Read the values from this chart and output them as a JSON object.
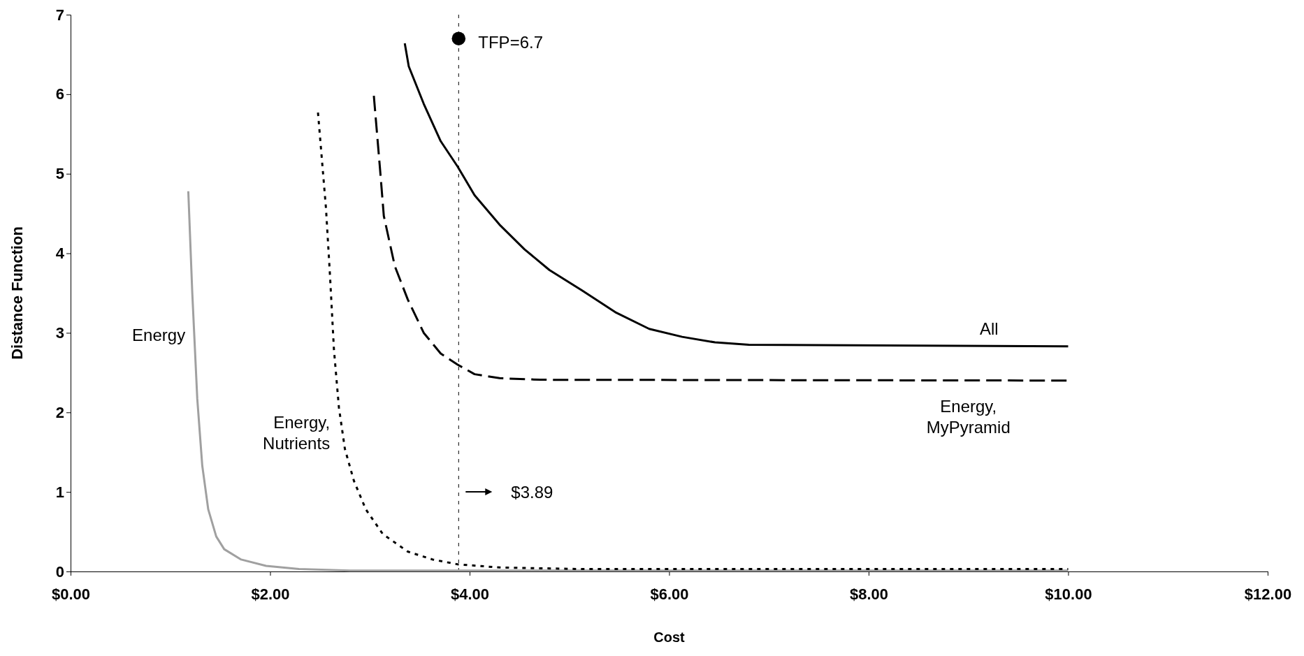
{
  "chart_data": {
    "type": "line",
    "xlabel": "Cost",
    "ylabel": "Distance Function",
    "xlim": [
      0,
      12
    ],
    "ylim": [
      0,
      7
    ],
    "xticks": [
      {
        "value": 0,
        "label": "$0.00"
      },
      {
        "value": 2,
        "label": "$2.00"
      },
      {
        "value": 4,
        "label": "$4.00"
      },
      {
        "value": 6,
        "label": "$6.00"
      },
      {
        "value": 8,
        "label": "$8.00"
      },
      {
        "value": 10,
        "label": "$10.00"
      },
      {
        "value": 12,
        "label": "$12.00"
      }
    ],
    "yticks": [
      0,
      1,
      2,
      3,
      4,
      5,
      6,
      7
    ],
    "grid": false,
    "series": [
      {
        "name": "Energy",
        "color": "#a0a0a0",
        "line_style": "solid",
        "x": [
          1.18,
          1.22,
          1.27,
          1.32,
          1.38,
          1.46,
          1.54,
          1.71,
          1.96,
          2.29,
          2.8,
          10
        ],
        "values": [
          4.78,
          3.5,
          2.17,
          1.33,
          0.78,
          0.44,
          0.28,
          0.15,
          0.07,
          0.03,
          0.01,
          0.01
        ]
      },
      {
        "name": "Energy, Nutrients",
        "color": "#000000",
        "line_style": "dotted",
        "x": [
          2.48,
          2.56,
          2.6,
          2.64,
          2.69,
          2.75,
          2.84,
          2.96,
          3.13,
          3.38,
          3.63,
          3.88,
          4.3,
          5.13,
          10
        ],
        "values": [
          5.77,
          4.57,
          3.73,
          2.79,
          2.06,
          1.54,
          1.14,
          0.78,
          0.47,
          0.25,
          0.15,
          0.09,
          0.05,
          0.03,
          0.03
        ]
      },
      {
        "name": "Energy, MyPyramid",
        "color": "#000000",
        "line_style": "dashed",
        "x": [
          3.04,
          3.1,
          3.14,
          3.25,
          3.38,
          3.54,
          3.71,
          3.88,
          4.05,
          4.3,
          4.71,
          10
        ],
        "values": [
          5.98,
          5.09,
          4.47,
          3.84,
          3.42,
          3.0,
          2.74,
          2.6,
          2.48,
          2.43,
          2.41,
          2.4
        ]
      },
      {
        "name": "All",
        "color": "#000000",
        "line_style": "solid",
        "x": [
          3.35,
          3.39,
          3.54,
          3.71,
          3.88,
          4.05,
          4.3,
          4.55,
          4.8,
          5.13,
          5.46,
          5.8,
          6.13,
          6.46,
          6.8,
          10
        ],
        "values": [
          6.64,
          6.35,
          5.88,
          5.41,
          5.09,
          4.73,
          4.36,
          4.05,
          3.79,
          3.53,
          3.26,
          3.05,
          2.95,
          2.88,
          2.85,
          2.83
        ]
      },
      {
        "type": "scatter",
        "marker": "circle",
        "color": "#000000",
        "x": [
          3.89
        ],
        "values": [
          6.7
        ]
      }
    ],
    "ref_lines": [
      {
        "axis": "x",
        "value": 3.89,
        "color": "#000000",
        "line_style": "dotted"
      }
    ],
    "annotations": [
      {
        "text": "TFP=6.7",
        "x": 3.89,
        "y": 6.7
      },
      "$3.89"
    ]
  }
}
